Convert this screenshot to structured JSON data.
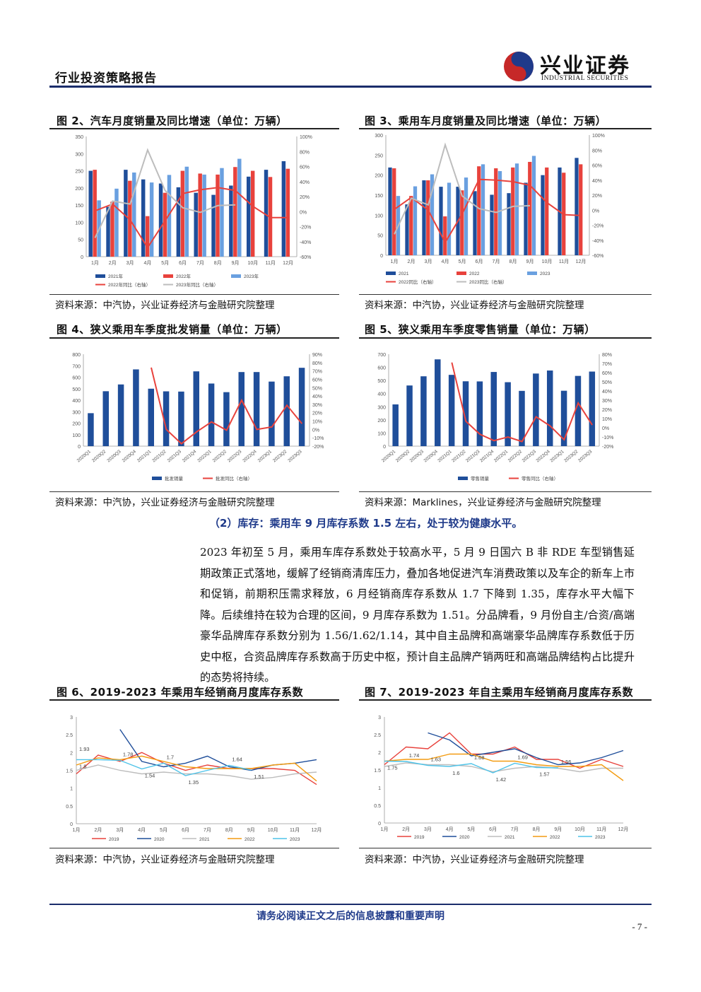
{
  "header": {
    "report_type": "行业投资策略报告",
    "logo_cn": "兴业证券",
    "logo_en": "INDUSTRIAL SECURITIES"
  },
  "colors": {
    "navy": "#1f4e9a",
    "red": "#e8423c",
    "lightblue": "#6aa0e0",
    "grey": "#bdbdbd",
    "orange": "#f39c12",
    "cyan": "#4fc3e8"
  },
  "figures": [
    {
      "title": "图 2、汽车月度销量及同比增速（单位：万辆）",
      "source": "资料来源：中汽协，兴业证券经济与金融研究院整理"
    },
    {
      "title": "图 3、乘用车月度销量及同比增速（单位：万辆）",
      "source": "资料来源：中汽协，兴业证券经济与金融研究院整理"
    },
    {
      "title": "图 4、狭义乘用车季度批发销量（单位：万辆）",
      "source": "资料来源：中汽协，兴业证券经济与金融研究院整理"
    },
    {
      "title": "图 5、狭义乘用车季度零售销量（单位：万辆）",
      "source": "资料来源：Marklines，兴业证券经济与金融研究院整理"
    },
    {
      "title": "图 6、2019-2023 年乘用车经销商月度库存系数",
      "source": "资料来源：中汽协，兴业证券经济与金融研究院整理"
    },
    {
      "title": "图 7、2019-2023 年自主乘用车经销商月度库存系数",
      "source": "资料来源：中汽协，兴业证券经济与金融研究院整理"
    }
  ],
  "section": {
    "heading": "（2）库存：乘用车 9 月库存系数 1.5 左右，处于较为健康水平。",
    "paragraph": "2023 年初至 5 月，乘用车库存系数处于较高水平，5 月 9 日国六 B 非 RDE 车型销售延期政策正式落地，缓解了经销商清库压力，叠加各地促进汽车消费政策以及车企的新车上市和促销，前期积压需求释放，6 月经销商库存系数从 1.7 下降到 1.35，库存水平大幅下降。后续维持在较为合理的区间，9 月库存系数为 1.51。分品牌看，9 月份自主/合资/高端豪华品牌库存系数分别为 1.56/1.62/1.14，其中自主品牌和高端豪华品牌库存系数低于历史中枢，合资品牌库存系数高于历史中枢，预计自主品牌产销两旺和高端品牌结构占比提升的态势将持续。"
  },
  "footer": {
    "disclaimer": "请务必阅读正文之后的信息披露和重要声明",
    "page": "- 7 -"
  },
  "chart_data": [
    {
      "type": "bar",
      "categories": [
        "1月",
        "2月",
        "3月",
        "4月",
        "5月",
        "6月",
        "7月",
        "8月",
        "9月",
        "10月",
        "11月",
        "12月"
      ],
      "ylim": [
        0,
        350
      ],
      "y2lim": [
        -60,
        100
      ],
      "yticks": [
        "0",
        "50",
        "100",
        "150",
        "200",
        "250",
        "300",
        "350"
      ],
      "y2ticks": [
        "-60%",
        "-40%",
        "-20%",
        "0%",
        "20%",
        "40%",
        "60%",
        "80%",
        "100%"
      ],
      "series": [
        {
          "name": "2021年",
          "kind": "bar",
          "values": [
            250,
            145,
            253,
            225,
            213,
            202,
            186,
            180,
            207,
            233,
            253,
            278
          ]
        },
        {
          "name": "2022年",
          "kind": "bar",
          "values": [
            253,
            160,
            221,
            118,
            186,
            250,
            242,
            239,
            261,
            250,
            232,
            256
          ]
        },
        {
          "name": "2023年",
          "kind": "bar",
          "values": [
            164,
            198,
            245,
            216,
            238,
            262,
            239,
            258,
            285,
            null,
            null,
            null
          ]
        },
        {
          "name": "2022年同比（右轴）",
          "kind": "line",
          "axis": "right",
          "values": [
            1,
            10,
            -11,
            -48,
            -12,
            24,
            29,
            32,
            28,
            7,
            -8,
            -8
          ]
        },
        {
          "name": "2023年同比（右轴）",
          "kind": "line",
          "axis": "right",
          "values": [
            -35,
            14,
            10,
            82,
            28,
            5,
            -1,
            8,
            9,
            null,
            null,
            null
          ]
        }
      ]
    },
    {
      "type": "bar",
      "categories": [
        "1月",
        "2月",
        "3月",
        "4月",
        "5月",
        "6月",
        "7月",
        "8月",
        "9月",
        "10月",
        "11月",
        "12月"
      ],
      "ylim": [
        0,
        300
      ],
      "y2lim": [
        -60,
        100
      ],
      "yticks": [
        "0",
        "50",
        "100",
        "150",
        "200",
        "250",
        "300"
      ],
      "y2ticks": [
        "-60%",
        "-40%",
        "-20%",
        "0%",
        "20%",
        "40%",
        "60%",
        "80%",
        "100%"
      ],
      "series": [
        {
          "name": "2021",
          "kind": "bar",
          "values": [
            219,
            127,
            187,
            171,
            171,
            160,
            151,
            155,
            181,
            200,
            219,
            243
          ]
        },
        {
          "name": "2022",
          "kind": "bar",
          "values": [
            217,
            148,
            187,
            97,
            162,
            222,
            217,
            219,
            233,
            219,
            206,
            227
          ]
        },
        {
          "name": "2023",
          "kind": "bar",
          "values": [
            148,
            172,
            202,
            181,
            194,
            227,
            210,
            229,
            248,
            null,
            null,
            null
          ]
        },
        {
          "name": "2022同比（右轴）",
          "kind": "line",
          "axis": "right",
          "values": [
            1,
            17,
            0,
            -43,
            -5,
            41,
            40,
            38,
            33,
            10,
            -6,
            -7
          ]
        },
        {
          "name": "2023同比（右轴）",
          "kind": "line",
          "axis": "right",
          "values": [
            -32,
            16,
            7,
            87,
            19,
            2,
            -3,
            5,
            6,
            null,
            null,
            null
          ]
        }
      ]
    },
    {
      "type": "bar",
      "categories": [
        "2020Q1",
        "2020Q2",
        "2020Q3",
        "2020Q4",
        "2021Q1",
        "2021Q2",
        "2021Q3",
        "2021Q4",
        "2022Q1",
        "2022Q2",
        "2022Q3",
        "2022Q4",
        "2023Q1",
        "2023Q2",
        "2023Q3"
      ],
      "ylim": [
        0,
        800
      ],
      "y2lim": [
        -20,
        90
      ],
      "yticks": [
        "0",
        "100",
        "200",
        "300",
        "400",
        "500",
        "600",
        "700",
        "800"
      ],
      "y2ticks": [
        "-20%",
        "-10%",
        "0%",
        "10%",
        "20%",
        "30%",
        "40%",
        "50%",
        "60%",
        "70%",
        "80%",
        "90%"
      ],
      "series": [
        {
          "name": "批发销量",
          "kind": "bar",
          "values": [
            287,
            478,
            537,
            668,
            500,
            477,
            475,
            651,
            545,
            470,
            645,
            645,
            562,
            608,
            682
          ]
        },
        {
          "name": "批发同比（右轴）",
          "kind": "line",
          "axis": "right",
          "values": [
            null,
            null,
            null,
            null,
            74,
            0,
            -17,
            -3,
            9,
            -1,
            35,
            0,
            3,
            29,
            7
          ]
        }
      ]
    },
    {
      "type": "bar",
      "categories": [
        "2020Q1",
        "2020Q2",
        "2020Q3",
        "2020Q4",
        "2021Q1",
        "2021Q2",
        "2021Q3",
        "2021Q4",
        "2022Q1",
        "2022Q2",
        "2022Q3",
        "2022Q4",
        "2023Q1",
        "2023Q2",
        "2023Q3"
      ],
      "ylim": [
        0,
        700
      ],
      "y2lim": [
        -20,
        80
      ],
      "yticks": [
        "0",
        "100",
        "200",
        "300",
        "400",
        "500",
        "600",
        "700"
      ],
      "y2ticks": [
        "-20%",
        "-10%",
        "0%",
        "10%",
        "20%",
        "30%",
        "40%",
        "50%",
        "60%",
        "70%",
        "80%"
      ],
      "series": [
        {
          "name": "零售销量",
          "kind": "bar",
          "values": [
            318,
            462,
            532,
            661,
            543,
            494,
            493,
            565,
            487,
            421,
            553,
            576,
            422,
            535,
            568
          ]
        },
        {
          "name": "零售同比（右轴）",
          "kind": "line",
          "axis": "right",
          "values": [
            null,
            null,
            null,
            null,
            71,
            7,
            -7,
            -14,
            -10,
            -15,
            12,
            2,
            -13,
            27,
            3
          ]
        }
      ]
    },
    {
      "type": "line",
      "categories": [
        "1月",
        "2月",
        "3月",
        "4月",
        "5月",
        "6月",
        "7月",
        "8月",
        "9月",
        "10月",
        "11月",
        "12月"
      ],
      "ylim": [
        0,
        3
      ],
      "yticks": [
        "0",
        "0.5",
        "1",
        "1.5",
        "2",
        "2.5",
        "3"
      ],
      "series": [
        {
          "name": "2019",
          "values": [
            1.4,
            1.93,
            1.75,
            2.0,
            1.7,
            1.5,
            1.65,
            1.55,
            1.55,
            1.55,
            1.5,
            1.1
          ]
        },
        {
          "name": "2020",
          "values": [
            null,
            null,
            2.65,
            1.75,
            1.6,
            1.7,
            1.9,
            1.6,
            1.5,
            1.65,
            1.7,
            1.8
          ]
        },
        {
          "name": "2021",
          "values": [
            1.5,
            1.65,
            1.5,
            1.4,
            1.45,
            1.4,
            1.4,
            1.35,
            1.25,
            1.3,
            1.4,
            1.45
          ]
        },
        {
          "name": "2022",
          "values": [
            1.65,
            1.85,
            1.8,
            1.9,
            1.75,
            1.6,
            1.55,
            1.55,
            1.55,
            1.65,
            1.7,
            1.2
          ]
        },
        {
          "name": "2023",
          "values": [
            1.8,
            1.8,
            1.78,
            1.54,
            1.7,
            1.35,
            1.5,
            1.64,
            1.51,
            null,
            null,
            null
          ]
        }
      ],
      "labels": [
        "1.93",
        "1.8",
        "1.78",
        "1.54",
        "1.7",
        "1.35",
        "1.64",
        "1.51"
      ]
    },
    {
      "type": "line",
      "categories": [
        "1月",
        "2月",
        "3月",
        "4月",
        "5月",
        "6月",
        "7月",
        "8月",
        "9月",
        "10月",
        "11月",
        "12月"
      ],
      "ylim": [
        0,
        3
      ],
      "yticks": [
        "0",
        "0.5",
        "1",
        "1.5",
        "2",
        "2.5",
        "3"
      ],
      "series": [
        {
          "name": "2019",
          "values": [
            1.65,
            2.15,
            2.1,
            2.55,
            1.95,
            1.95,
            2.15,
            1.8,
            1.8,
            1.55,
            1.8,
            1.6
          ]
        },
        {
          "name": "2020",
          "values": [
            null,
            null,
            2.55,
            2.35,
            1.9,
            2.0,
            2.1,
            1.85,
            1.65,
            1.7,
            1.85,
            2.05
          ]
        },
        {
          "name": "2021",
          "values": [
            1.6,
            1.7,
            1.65,
            1.65,
            1.6,
            1.45,
            1.55,
            1.6,
            1.55,
            1.45,
            1.55,
            1.55
          ]
        },
        {
          "name": "2022",
          "values": [
            1.75,
            1.8,
            1.8,
            1.95,
            1.95,
            1.75,
            1.75,
            1.65,
            1.6,
            1.6,
            1.65,
            1.2
          ]
        },
        {
          "name": "2023",
          "values": [
            1.75,
            1.74,
            1.63,
            1.6,
            1.68,
            1.42,
            1.69,
            1.57,
            1.56,
            null,
            null,
            null
          ]
        }
      ],
      "labels": [
        "1.74",
        "1.75",
        "1.63",
        "1.6",
        "1.68",
        "1.42",
        "1.69",
        "1.57",
        "1.56"
      ]
    }
  ]
}
